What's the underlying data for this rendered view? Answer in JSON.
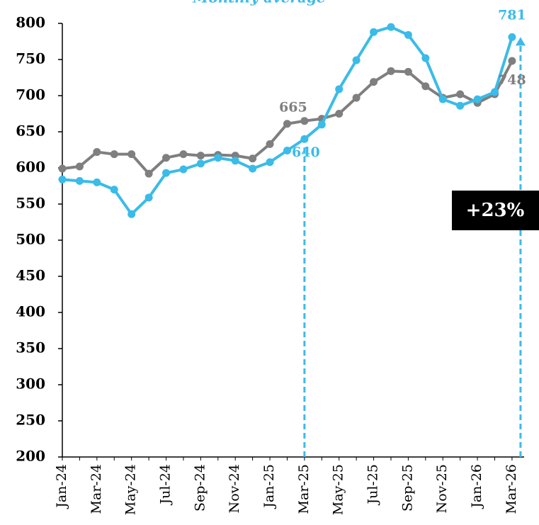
{
  "chart_data": {
    "type": "line",
    "title": "Monthly average",
    "categories": [
      "Jan-24",
      null,
      "Mar-24",
      null,
      "May-24",
      null,
      "Jul-24",
      null,
      "Sep-24",
      null,
      "Nov-24",
      null,
      "Jan-25",
      null,
      "Mar-25",
      null,
      "May-25",
      null,
      "Jul-25",
      null,
      "Sep-25",
      null,
      "Nov-25",
      null,
      "Jan-26",
      null,
      "Mar-26"
    ],
    "series": [
      {
        "color": "#7f7f7f",
        "values": [
          599,
          602,
          622,
          619,
          619,
          592,
          614,
          619,
          617,
          618,
          617,
          613,
          633,
          661,
          665,
          668,
          675,
          697,
          719,
          734,
          733,
          713,
          697,
          702,
          690,
          702,
          748
        ]
      },
      {
        "color": "#3bbbe8",
        "values": [
          584,
          582,
          580,
          570,
          536,
          559,
          593,
          598,
          606,
          614,
          610,
          599,
          608,
          624,
          640,
          660,
          709,
          749,
          788,
          795,
          784,
          752,
          695,
          686,
          695,
          705,
          781
        ]
      }
    ],
    "label_indices": [
      14,
      26
    ],
    "annotation": "+23%",
    "ylim": [
      200,
      800
    ],
    "yticks": [
      200,
      250,
      300,
      350,
      400,
      450,
      500,
      550,
      600,
      650,
      700,
      750,
      800
    ]
  }
}
